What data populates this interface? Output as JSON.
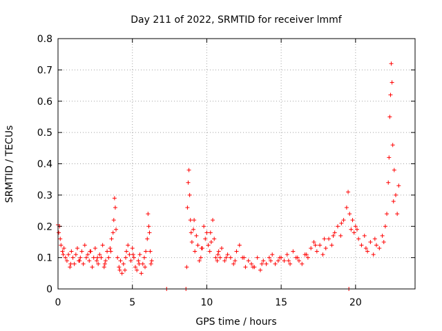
{
  "chart_data": {
    "type": "scatter",
    "title": "Day 211 of 2022, SRMTID for receiver lmmf",
    "xlabel": "GPS time / hours",
    "ylabel": "SRMTID / TECUs",
    "xlim": [
      0,
      24
    ],
    "ylim": [
      0,
      0.8
    ],
    "xticks": [
      0,
      5,
      10,
      15,
      20
    ],
    "xtick_labels": [
      "0",
      "5",
      "10",
      "15",
      "20"
    ],
    "yticks": [
      0,
      0.1,
      0.2,
      0.3,
      0.4,
      0.5,
      0.6,
      0.7,
      0.8
    ],
    "ytick_labels": [
      "0",
      "0.1",
      "0.2",
      "0.3",
      "0.4",
      "0.5",
      "0.6",
      "0.7",
      "0.8"
    ],
    "grid": true,
    "marker": "+",
    "marker_color": "#ff0000",
    "series": [
      {
        "name": "lmmf",
        "x": [
          0.0,
          0.05,
          0.1,
          0.15,
          0.2,
          0.3,
          0.4,
          0.5,
          0.6,
          0.7,
          0.8,
          0.9,
          1.0,
          1.1,
          1.2,
          1.3,
          1.4,
          1.5,
          1.6,
          1.7,
          1.8,
          1.9,
          2.0,
          2.1,
          2.2,
          2.3,
          2.4,
          2.5,
          2.6,
          2.7,
          2.8,
          2.9,
          3.0,
          3.1,
          3.2,
          3.3,
          3.4,
          3.5,
          3.6,
          3.7,
          3.75,
          3.8,
          3.85,
          3.9,
          4.0,
          4.1,
          4.2,
          4.3,
          4.4,
          4.5,
          4.6,
          4.7,
          4.8,
          4.9,
          5.0,
          5.1,
          5.2,
          5.3,
          5.4,
          5.5,
          5.6,
          5.7,
          5.8,
          5.9,
          6.0,
          6.05,
          6.1,
          6.15,
          6.2,
          6.25,
          6.3,
          7.3,
          8.6,
          8.65,
          8.7,
          8.75,
          8.8,
          8.85,
          8.9,
          8.95,
          9.0,
          9.1,
          9.2,
          9.3,
          9.4,
          9.5,
          9.6,
          9.7,
          9.8,
          9.9,
          10.0,
          10.1,
          10.2,
          10.3,
          10.4,
          10.5,
          10.6,
          10.7,
          10.8,
          10.9,
          11.0,
          11.2,
          11.4,
          11.6,
          11.8,
          12.0,
          12.2,
          12.4,
          12.6,
          12.8,
          13.0,
          13.2,
          13.4,
          13.6,
          13.8,
          14.0,
          14.2,
          14.4,
          14.6,
          14.8,
          15.0,
          15.2,
          15.4,
          15.6,
          15.8,
          16.0,
          16.2,
          16.4,
          16.6,
          16.8,
          17.0,
          17.2,
          17.4,
          17.6,
          17.8,
          18.0,
          18.2,
          18.4,
          18.6,
          18.8,
          19.0,
          19.2,
          19.4,
          19.5,
          19.6,
          19.7,
          19.8,
          19.9,
          20.0,
          20.2,
          20.4,
          20.6,
          20.8,
          21.0,
          21.2,
          21.4,
          21.6,
          21.8,
          22.0,
          22.1,
          22.2,
          22.25,
          22.3,
          22.35,
          22.4,
          22.45,
          22.5,
          22.6,
          22.7,
          22.8,
          22.9,
          0.35,
          0.85,
          1.45,
          2.15,
          2.65,
          3.15,
          3.55,
          4.15,
          4.55,
          5.05,
          5.45,
          5.85,
          9.15,
          9.65,
          10.25,
          10.75,
          11.3,
          11.9,
          12.5,
          13.1,
          13.7,
          14.3,
          14.9,
          15.5,
          16.1,
          16.7,
          17.3,
          17.9,
          18.5,
          19.05,
          19.55,
          20.1,
          20.7,
          21.3,
          21.9,
          22.55
        ],
        "y": [
          0.205,
          0.18,
          0.2,
          0.16,
          0.14,
          0.12,
          0.13,
          0.1,
          0.09,
          0.11,
          0.07,
          0.12,
          0.1,
          0.08,
          0.11,
          0.13,
          0.09,
          0.1,
          0.12,
          0.08,
          0.14,
          0.1,
          0.11,
          0.09,
          0.12,
          0.07,
          0.1,
          0.13,
          0.09,
          0.08,
          0.11,
          0.1,
          0.14,
          0.07,
          0.09,
          0.12,
          0.1,
          0.13,
          0.16,
          0.18,
          0.22,
          0.29,
          0.26,
          0.19,
          0.1,
          0.07,
          0.09,
          0.05,
          0.08,
          0.06,
          0.12,
          0.14,
          0.11,
          0.09,
          0.13,
          0.1,
          0.07,
          0.06,
          0.09,
          0.11,
          0.05,
          0.08,
          0.1,
          0.12,
          0.16,
          0.24,
          0.2,
          0.18,
          0.12,
          0.08,
          0.09,
          0.0,
          0.0,
          0.07,
          0.26,
          0.34,
          0.38,
          0.3,
          0.22,
          0.18,
          0.15,
          0.19,
          0.12,
          0.17,
          0.14,
          0.09,
          0.1,
          0.13,
          0.2,
          0.16,
          0.18,
          0.14,
          0.12,
          0.15,
          0.22,
          0.16,
          0.1,
          0.09,
          0.12,
          0.1,
          0.13,
          0.09,
          0.11,
          0.1,
          0.08,
          0.12,
          0.14,
          0.1,
          0.07,
          0.09,
          0.08,
          0.07,
          0.1,
          0.06,
          0.09,
          0.08,
          0.1,
          0.11,
          0.08,
          0.09,
          0.1,
          0.09,
          0.11,
          0.08,
          0.12,
          0.1,
          0.09,
          0.08,
          0.11,
          0.1,
          0.13,
          0.15,
          0.12,
          0.14,
          0.11,
          0.13,
          0.16,
          0.14,
          0.18,
          0.2,
          0.17,
          0.22,
          0.26,
          0.31,
          0.24,
          0.19,
          0.22,
          0.18,
          0.2,
          0.16,
          0.14,
          0.17,
          0.12,
          0.15,
          0.11,
          0.14,
          0.13,
          0.17,
          0.2,
          0.24,
          0.34,
          0.42,
          0.55,
          0.62,
          0.72,
          0.66,
          0.46,
          0.38,
          0.3,
          0.24,
          0.33,
          0.11,
          0.08,
          0.09,
          0.12,
          0.1,
          0.08,
          0.12,
          0.06,
          0.1,
          0.11,
          0.08,
          0.07,
          0.22,
          0.13,
          0.18,
          0.11,
          0.1,
          0.09,
          0.1,
          0.07,
          0.08,
          0.09,
          0.1,
          0.09,
          0.1,
          0.11,
          0.14,
          0.16,
          0.17,
          0.21,
          0.0,
          0.19,
          0.13,
          0.16,
          0.15,
          0.28
        ]
      }
    ]
  }
}
